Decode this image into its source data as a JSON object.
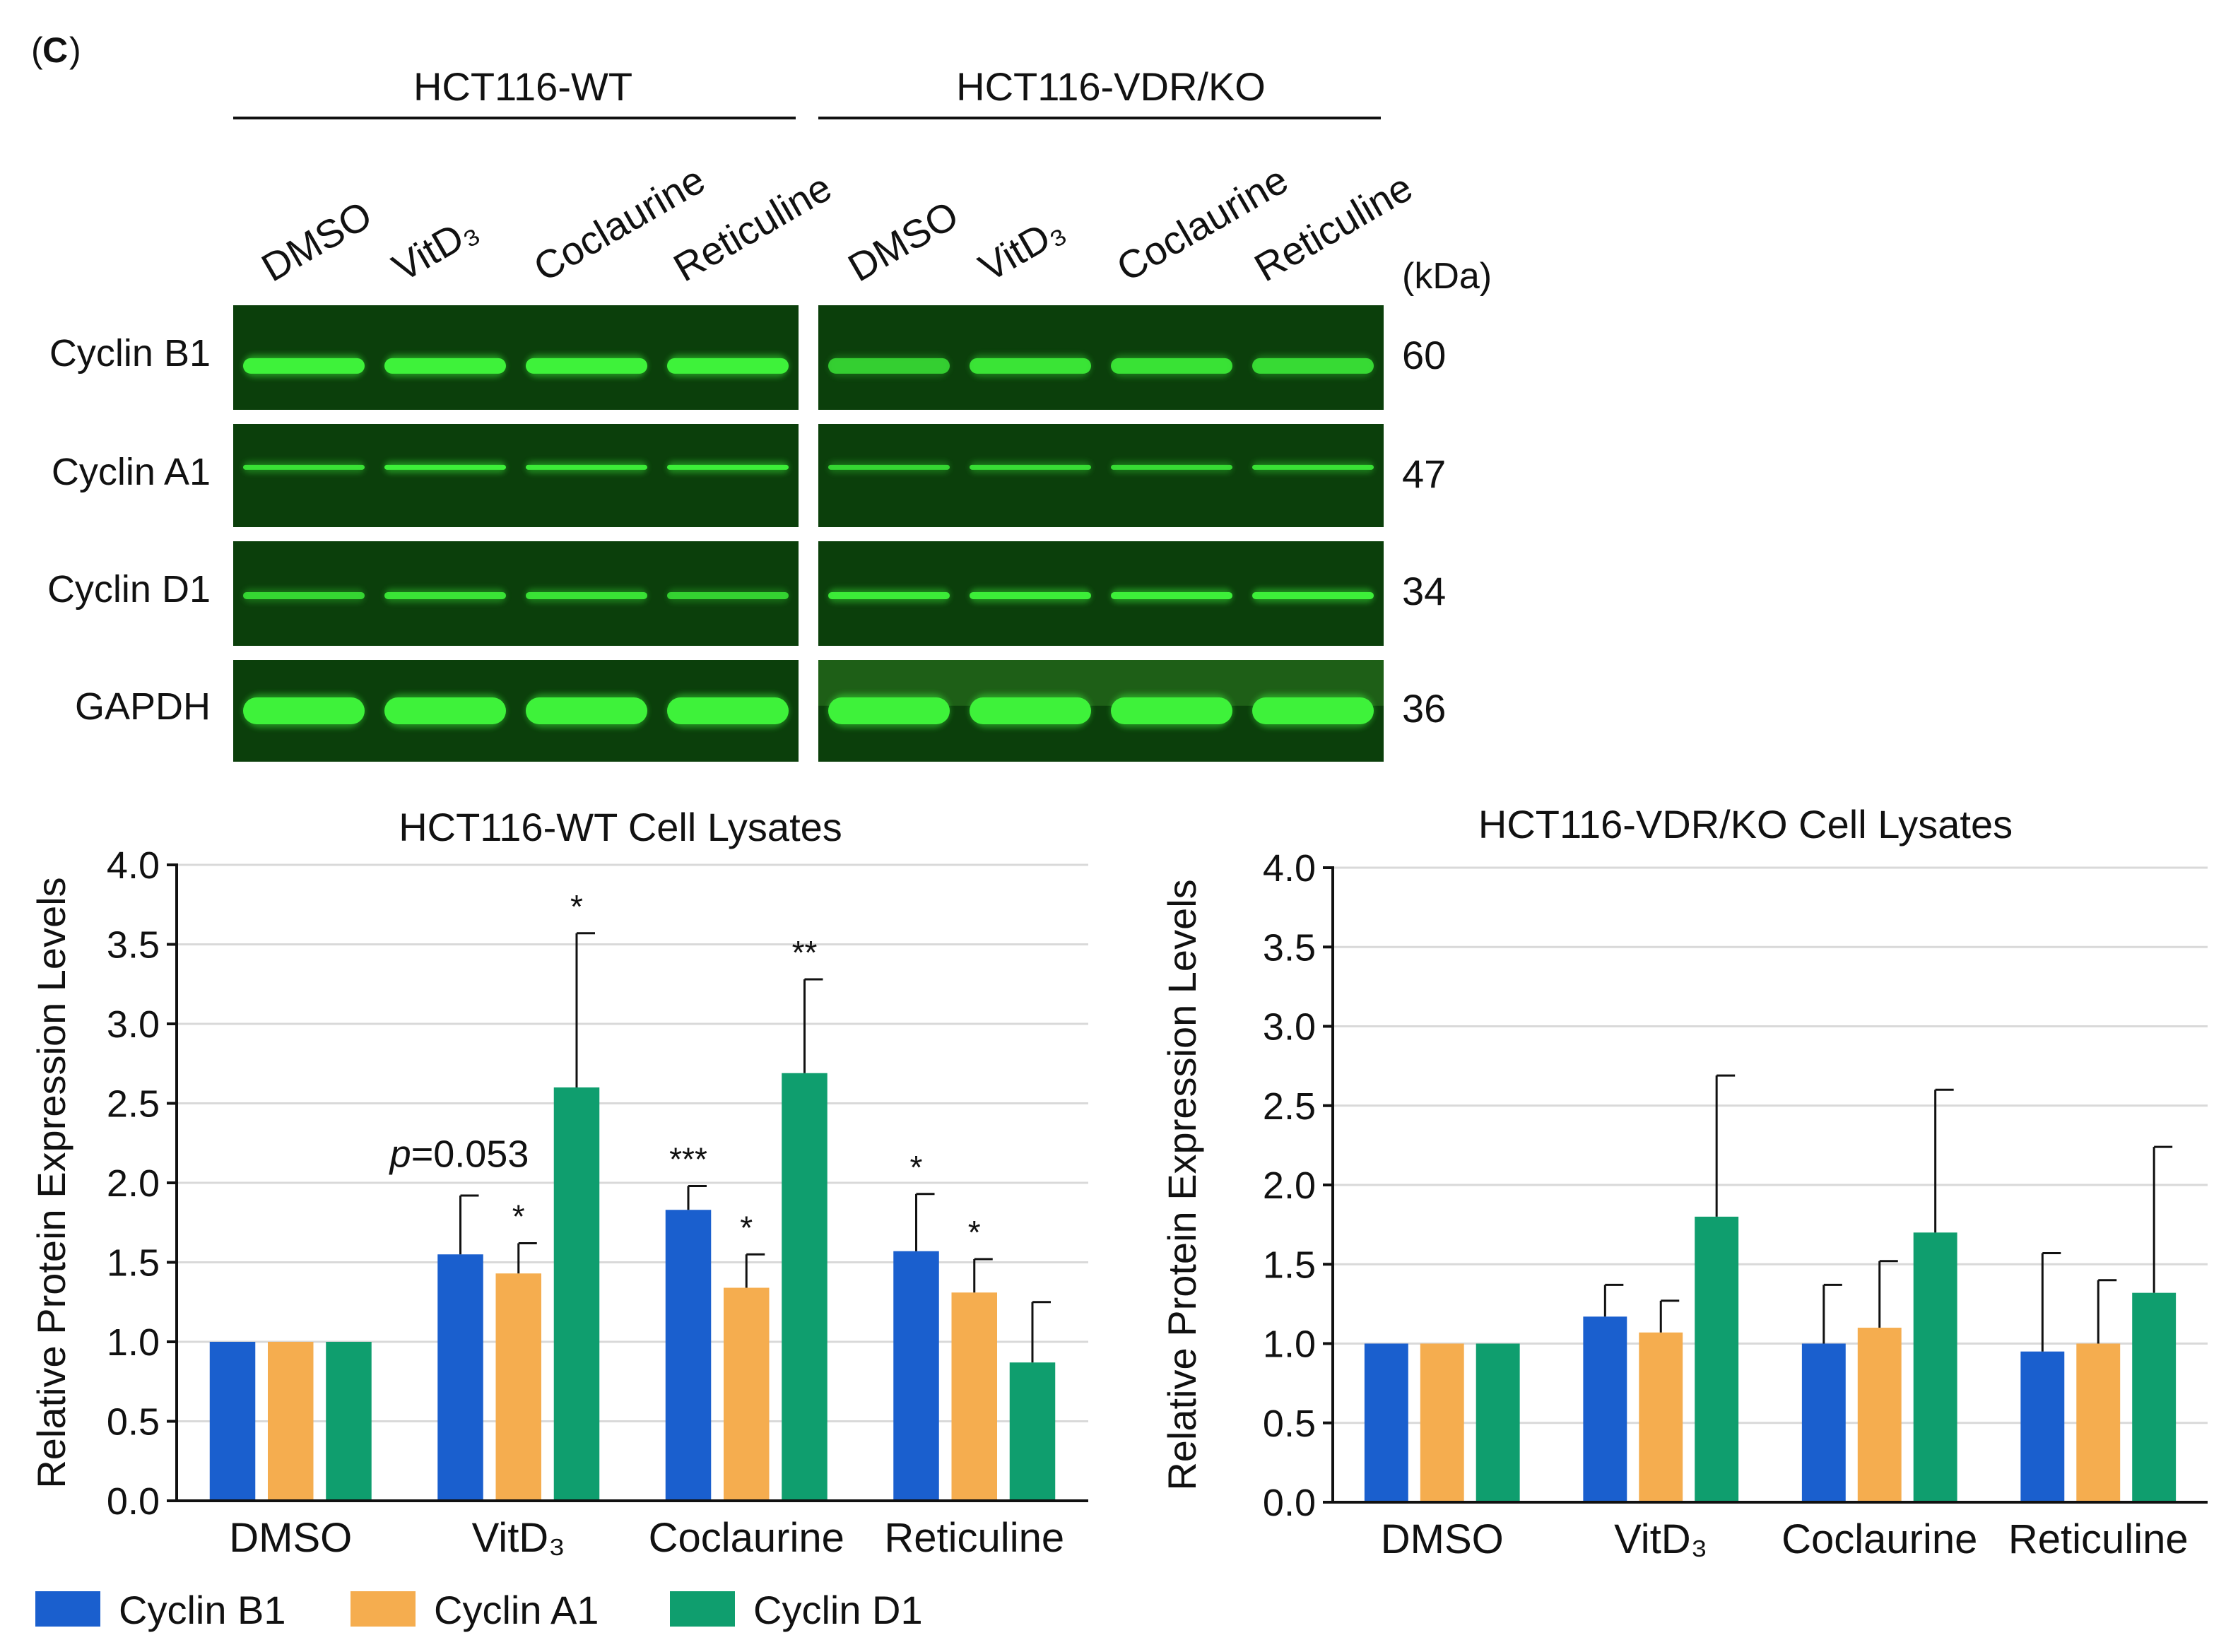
{
  "panel_label": "C",
  "blot": {
    "group_labels": [
      "HCT116-WT",
      "HCT116-VDR/KO"
    ],
    "lane_labels": [
      "DMSO",
      "VitD₃",
      "Coclaurine",
      "Reticuline"
    ],
    "kda_header": "(kDa)",
    "rows": [
      {
        "label": "Cyclin B1",
        "kda": "60"
      },
      {
        "label": "Cyclin A1",
        "kda": "47"
      },
      {
        "label": "Cyclin D1",
        "kda": "34"
      },
      {
        "label": "GAPDH",
        "kda": "36"
      }
    ]
  },
  "colors": {
    "cyclin_b1": "#1a5fce",
    "cyclin_a1": "#f5ad4f",
    "cyclin_d1": "#0f9e6e",
    "band": "#3ef23a",
    "blot_bg": "#0b3f0b"
  },
  "legend": [
    "Cyclin B1",
    "Cyclin A1",
    "Cyclin D1"
  ],
  "chart_data": [
    {
      "type": "bar",
      "title": "HCT116-WT Cell Lysates",
      "ylabel": "Relative Protein Expression Levels",
      "xlabel": "",
      "ylim": [
        0,
        4.0
      ],
      "yticks": [
        "0.0",
        "0.5",
        "1.0",
        "1.5",
        "2.0",
        "2.5",
        "3.0",
        "3.5",
        "4.0"
      ],
      "categories": [
        "DMSO",
        "VitD₃",
        "Coclaurine",
        "Reticuline"
      ],
      "series": [
        {
          "name": "Cyclin B1",
          "values": [
            1.0,
            1.55,
            1.83,
            1.57
          ],
          "errors": [
            0,
            0.37,
            0.15,
            0.36
          ],
          "sig": [
            "",
            "",
            "***",
            "*"
          ]
        },
        {
          "name": "Cyclin A1",
          "values": [
            1.0,
            1.43,
            1.34,
            1.31
          ],
          "errors": [
            0,
            0.19,
            0.21,
            0.21
          ],
          "sig": [
            "",
            "*",
            "*",
            "*"
          ]
        },
        {
          "name": "Cyclin D1",
          "values": [
            1.0,
            2.6,
            2.69,
            0.87
          ],
          "errors": [
            0,
            0.97,
            0.59,
            0.38
          ],
          "sig": [
            "",
            "*",
            "**",
            ""
          ]
        }
      ],
      "annotation": {
        "text_italic": "p",
        "text": "=0.053"
      },
      "grid": true,
      "legend_position": "bottom"
    },
    {
      "type": "bar",
      "title": "HCT116-VDR/KO Cell Lysates",
      "ylabel": "Relative Protein Expression Levels",
      "xlabel": "",
      "ylim": [
        0,
        4.0
      ],
      "yticks": [
        "0.0",
        "0.5",
        "1.0",
        "1.5",
        "2.0",
        "2.5",
        "3.0",
        "3.5",
        "4.0"
      ],
      "categories": [
        "DMSO",
        "VitD₃",
        "Coclaurine",
        "Reticuline"
      ],
      "series": [
        {
          "name": "Cyclin B1",
          "values": [
            1.0,
            1.17,
            1.0,
            0.95
          ],
          "errors": [
            0,
            0.2,
            0.37,
            0.62
          ],
          "sig": [
            "",
            "",
            "",
            ""
          ]
        },
        {
          "name": "Cyclin A1",
          "values": [
            1.0,
            1.07,
            1.1,
            1.0
          ],
          "errors": [
            0,
            0.2,
            0.42,
            0.4
          ],
          "sig": [
            "",
            "",
            "",
            ""
          ]
        },
        {
          "name": "Cyclin D1",
          "values": [
            1.0,
            1.8,
            1.7,
            1.32
          ],
          "errors": [
            0,
            0.89,
            0.9,
            0.92
          ],
          "sig": [
            "",
            "",
            "",
            ""
          ]
        }
      ],
      "grid": true,
      "legend_position": "bottom"
    }
  ]
}
